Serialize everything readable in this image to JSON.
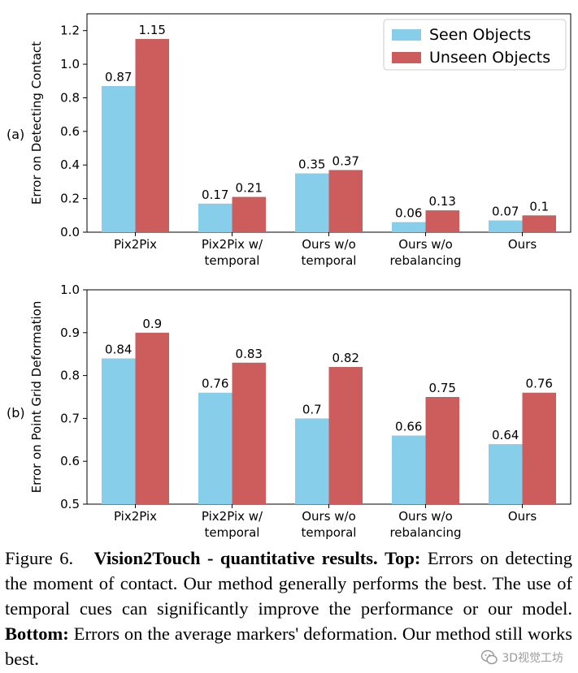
{
  "chart_data": [
    {
      "type": "bar",
      "panel_label": "(a)",
      "ylabel": "Error on Detecting Contact",
      "ylim": [
        0.0,
        1.3
      ],
      "yticks": [
        "0.0",
        "0.2",
        "0.4",
        "0.6",
        "0.8",
        "1.0",
        "1.2"
      ],
      "categories": [
        [
          "Pix2Pix"
        ],
        [
          "Pix2Pix w/",
          "temporal"
        ],
        [
          "Ours w/o",
          "temporal"
        ],
        [
          "Ours w/o",
          "rebalancing"
        ],
        [
          "Ours"
        ]
      ],
      "series": [
        {
          "name": "Seen Objects",
          "color": "#87CEEB",
          "values": [
            0.87,
            0.17,
            0.35,
            0.06,
            0.07
          ],
          "labels": [
            "0.87",
            "0.17",
            "0.35",
            "0.06",
            "0.07"
          ]
        },
        {
          "name": "Unseen Objects",
          "color": "#CD5C5C",
          "values": [
            1.15,
            0.21,
            0.37,
            0.13,
            0.1
          ],
          "labels": [
            "1.15",
            "0.21",
            "0.37",
            "0.13",
            "0.1"
          ]
        }
      ],
      "legend": "top-right"
    },
    {
      "type": "bar",
      "panel_label": "(b)",
      "ylabel": "Error on Point Grid Deformation",
      "ylim": [
        0.5,
        1.0
      ],
      "yticks": [
        "0.5",
        "0.6",
        "0.7",
        "0.8",
        "0.9",
        "1.0"
      ],
      "categories": [
        [
          "Pix2Pix"
        ],
        [
          "Pix2Pix w/",
          "temporal"
        ],
        [
          "Ours w/o",
          "temporal"
        ],
        [
          "Ours w/o",
          "rebalancing"
        ],
        [
          "Ours"
        ]
      ],
      "series": [
        {
          "name": "Seen Objects",
          "color": "#87CEEB",
          "values": [
            0.84,
            0.76,
            0.7,
            0.66,
            0.64
          ],
          "labels": [
            "0.84",
            "0.76",
            "0.7",
            "0.66",
            "0.64"
          ]
        },
        {
          "name": "Unseen Objects",
          "color": "#CD5C5C",
          "values": [
            0.9,
            0.83,
            0.82,
            0.75,
            0.76
          ],
          "labels": [
            "0.9",
            "0.83",
            "0.82",
            "0.75",
            "0.76"
          ]
        }
      ]
    }
  ],
  "caption": {
    "figure_label": "Figure 6.",
    "title": "Vision2Touch - quantitative results.",
    "top_label": "Top:",
    "top_text": "Errors on detecting the moment of contact. Our method generally performs the best. The use of temporal cues can significantly improve the performance or our model.",
    "bottom_label": "Bottom:",
    "bottom_text": "Errors on the average markers' deformation. Our method still works best."
  },
  "watermark": {
    "text": "3D视觉工坊"
  }
}
